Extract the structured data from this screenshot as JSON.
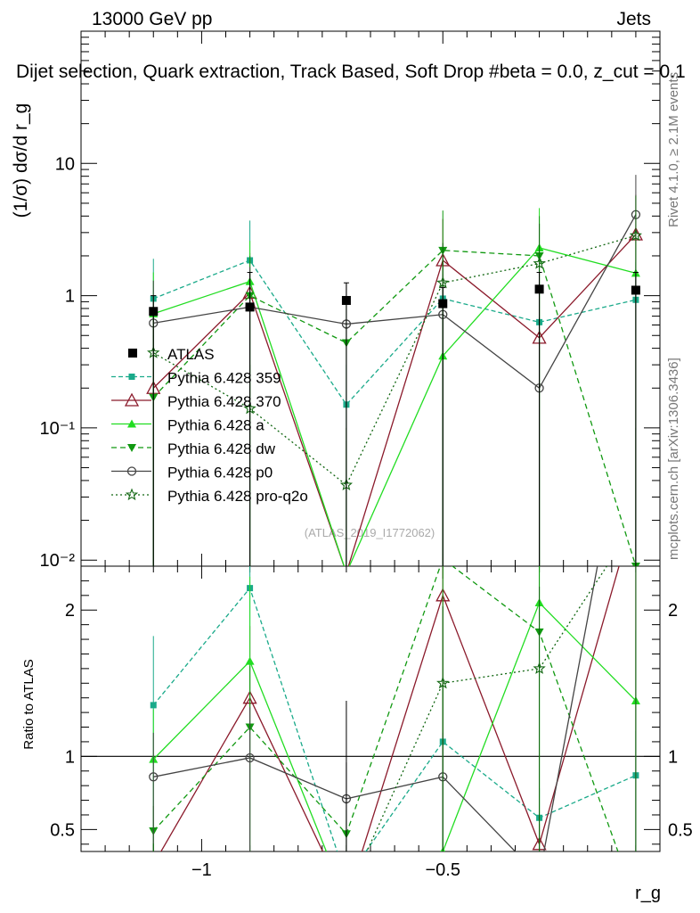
{
  "header": {
    "energy": "13000 GeV pp",
    "process": "Jets",
    "plot_title": "Dijet selection, Quark extraction, Track Based, Soft Drop #beta = 0.0, z_cut = 0.1"
  },
  "side_labels": {
    "rivet": "Rivet 4.1.0, ≥ 2.1M events",
    "mcplots": "mcplots.cern.ch [arXiv:1306.3436]"
  },
  "watermark": "(ATLAS_2019_I1772062)",
  "chart_data": {
    "type": "line",
    "title": "Dijet selection, Quark extraction, Track Based, Soft Drop #beta = 0.0, z_cut = 0.1",
    "xlabel": "r_g",
    "ylabel_main": "(1/σ) dσ/d r_g",
    "ylabel_ratio": "Ratio to ATLAS",
    "xlim": [
      -1.25,
      -0.05
    ],
    "ylim_main": [
      0.009,
      100
    ],
    "ylim_ratio": [
      0.35,
      2.3
    ],
    "yscale_main": "log",
    "x_ticks": [
      -1,
      -0.5
    ],
    "x_tick_labels": [
      "−1",
      "−0.5"
    ],
    "y_ticks_main": [
      0.01,
      0.1,
      1,
      10
    ],
    "y_tick_labels_main": [
      "10⁻²",
      "10⁻¹",
      "1",
      "10"
    ],
    "y_ticks_ratio": [
      0.5,
      1,
      2
    ],
    "y_tick_labels_ratio": [
      "0.5",
      "1",
      "2"
    ],
    "x": [
      -1.1,
      -0.9,
      -0.7,
      -0.5,
      -0.3,
      -0.1
    ],
    "data": {
      "name": "ATLAS",
      "values": [
        0.76,
        0.82,
        0.92,
        0.87,
        1.12,
        1.1
      ],
      "err_up": [
        1.0,
        1.5,
        1.25,
        1.15,
        1.5,
        1.5
      ],
      "err_down": [
        0.005,
        0.005,
        0.005,
        0.005,
        0.005,
        0.005
      ]
    },
    "series": [
      {
        "name": "Pythia 6.428 359",
        "color": "#1aaa8a",
        "dash": "5,3",
        "marker": "square",
        "values": [
          0.95,
          1.85,
          0.15,
          0.95,
          0.63,
          0.93
        ],
        "ratio": [
          1.35,
          2.15,
          0.16,
          1.1,
          0.58,
          0.87
        ],
        "err_hi": [
          1.9,
          3.7,
          0.3,
          1.9,
          1.25,
          1.8
        ]
      },
      {
        "name": "Pythia 6.428 370",
        "color": "#8b1a2b",
        "dash": "",
        "marker": "triangle-open",
        "values": [
          0.2,
          1.05,
          0.008,
          1.85,
          0.48,
          2.9
        ],
        "ratio": [
          0.26,
          1.4,
          0.01,
          2.1,
          0.4,
          2.7
        ],
        "err_hi": [
          0.9,
          2.1,
          0.1,
          3.8,
          1.0,
          5.8
        ]
      },
      {
        "name": "Pythia 6.428 a",
        "color": "#22dd22",
        "dash": "",
        "marker": "triangle",
        "values": [
          0.73,
          1.28,
          0.008,
          0.35,
          2.3,
          1.48
        ],
        "ratio": [
          0.98,
          1.65,
          0.01,
          0.35,
          2.05,
          1.38
        ],
        "err_hi": [
          1.5,
          2.6,
          0.1,
          0.8,
          4.6,
          3.0
        ]
      },
      {
        "name": "Pythia 6.428 dw",
        "color": "#119911",
        "dash": "6,4",
        "marker": "triangle-down",
        "values": [
          0.17,
          1.0,
          0.44,
          2.2,
          2.0,
          0.009
        ],
        "ratio": [
          0.49,
          1.2,
          0.47,
          2.35,
          1.85,
          0.01
        ],
        "err_hi": [
          0.5,
          2.0,
          0.9,
          4.4,
          4.0,
          0.1
        ]
      },
      {
        "name": "Pythia 6.428 p0",
        "color": "#444444",
        "dash": "",
        "marker": "circle-open",
        "values": [
          0.62,
          0.82,
          0.61,
          0.72,
          0.2,
          4.1
        ],
        "ratio": [
          0.86,
          0.99,
          0.71,
          0.86,
          0.18,
          3.7
        ],
        "err_hi": [
          1.3,
          1.65,
          1.25,
          1.45,
          0.45,
          8.2
        ]
      },
      {
        "name": "Pythia 6.428 pro-q2o",
        "color": "#116611",
        "dash": "2,3",
        "marker": "star",
        "values": [
          0.37,
          0.14,
          0.037,
          1.25,
          1.75,
          2.85
        ],
        "ratio": [
          0.3,
          0.22,
          0.04,
          1.5,
          1.6,
          2.6
        ],
        "err_hi": [
          0.8,
          0.3,
          0.08,
          2.5,
          3.5,
          5.7
        ]
      }
    ],
    "legend_position": "middle-left"
  }
}
